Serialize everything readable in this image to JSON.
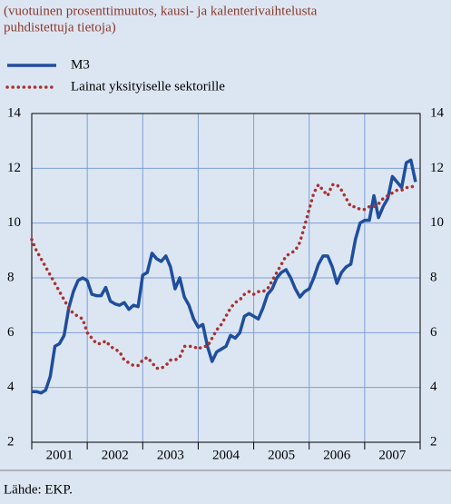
{
  "chart_data": {
    "type": "line",
    "subtitle": [
      "(vuotuinen prosenttimuutos, kausi- ja kalenterivaihtelusta",
      "puhdistettuja tietoja)"
    ],
    "categories": [
      "2001",
      "2002",
      "2003",
      "2004",
      "2005",
      "2006",
      "2007"
    ],
    "xlim": [
      2001,
      2008
    ],
    "ylim": [
      2,
      14
    ],
    "yticks": [
      2,
      4,
      6,
      8,
      10,
      12,
      14
    ],
    "y2lim": [
      2,
      14
    ],
    "y2ticks": [
      2,
      4,
      6,
      8,
      10,
      12,
      14
    ],
    "grid": true,
    "source": "Lähde: EKP.",
    "series": [
      {
        "name": "M3",
        "color": "#1f4e9c",
        "style": "solid",
        "x": [
          2001,
          2001.083,
          2001.167,
          2001.25,
          2001.333,
          2001.417,
          2001.5,
          2001.583,
          2001.667,
          2001.75,
          2001.833,
          2001.917,
          2002,
          2002.083,
          2002.167,
          2002.25,
          2002.333,
          2002.417,
          2002.5,
          2002.583,
          2002.667,
          2002.75,
          2002.833,
          2002.917,
          2003,
          2003.083,
          2003.167,
          2003.25,
          2003.333,
          2003.417,
          2003.5,
          2003.583,
          2003.667,
          2003.75,
          2003.833,
          2003.917,
          2004,
          2004.083,
          2004.167,
          2004.25,
          2004.333,
          2004.417,
          2004.5,
          2004.583,
          2004.667,
          2004.75,
          2004.833,
          2004.917,
          2005,
          2005.083,
          2005.167,
          2005.25,
          2005.333,
          2005.417,
          2005.5,
          2005.583,
          2005.667,
          2005.75,
          2005.833,
          2005.917,
          2006,
          2006.083,
          2006.167,
          2006.25,
          2006.333,
          2006.417,
          2006.5,
          2006.583,
          2006.667,
          2006.75,
          2006.833,
          2006.917,
          2007,
          2007.083,
          2007.167,
          2007.25,
          2007.333,
          2007.417,
          2007.5,
          2007.583,
          2007.667,
          2007.75,
          2007.833,
          2007.917
        ],
        "values": [
          3.85,
          3.85,
          3.8,
          3.9,
          4.4,
          5.5,
          5.6,
          5.9,
          6.9,
          7.5,
          7.9,
          8.0,
          7.9,
          7.4,
          7.35,
          7.35,
          7.65,
          7.15,
          7.05,
          7.0,
          7.1,
          6.85,
          7.0,
          6.95,
          8.1,
          8.2,
          8.9,
          8.7,
          8.6,
          8.8,
          8.4,
          7.6,
          8.0,
          7.3,
          7.0,
          6.5,
          6.2,
          6.3,
          5.5,
          4.95,
          5.3,
          5.4,
          5.5,
          5.9,
          5.8,
          6.0,
          6.6,
          6.7,
          6.6,
          6.5,
          6.9,
          7.4,
          7.6,
          8.0,
          8.2,
          8.3,
          8.0,
          7.6,
          7.3,
          7.5,
          7.6,
          8.0,
          8.5,
          8.8,
          8.8,
          8.4,
          7.8,
          8.2,
          8.4,
          8.5,
          9.4,
          10.0,
          10.1,
          10.1,
          11.0,
          10.2,
          10.6,
          10.9,
          11.7,
          11.5,
          11.3,
          12.2,
          12.3,
          11.5
        ]
      },
      {
        "name": "Lainat yksityiselle sektorille",
        "color": "#a83232",
        "style": "dotted",
        "x": [
          2001,
          2001.083,
          2001.167,
          2001.25,
          2001.333,
          2001.417,
          2001.5,
          2001.583,
          2001.667,
          2001.75,
          2001.833,
          2001.917,
          2002,
          2002.083,
          2002.167,
          2002.25,
          2002.333,
          2002.417,
          2002.5,
          2002.583,
          2002.667,
          2002.75,
          2002.833,
          2002.917,
          2003,
          2003.083,
          2003.167,
          2003.25,
          2003.333,
          2003.417,
          2003.5,
          2003.583,
          2003.667,
          2003.75,
          2003.833,
          2003.917,
          2004,
          2004.083,
          2004.167,
          2004.25,
          2004.333,
          2004.417,
          2004.5,
          2004.583,
          2004.667,
          2004.75,
          2004.833,
          2004.917,
          2005,
          2005.083,
          2005.167,
          2005.25,
          2005.333,
          2005.417,
          2005.5,
          2005.583,
          2005.667,
          2005.75,
          2005.833,
          2005.917,
          2006,
          2006.083,
          2006.167,
          2006.25,
          2006.333,
          2006.417,
          2006.5,
          2006.583,
          2006.667,
          2006.75,
          2006.833,
          2006.917,
          2007,
          2007.083,
          2007.167,
          2007.25,
          2007.333,
          2007.417,
          2007.5,
          2007.583,
          2007.667,
          2007.75,
          2007.833,
          2007.917
        ],
        "values": [
          9.4,
          9.0,
          8.7,
          8.4,
          8.1,
          7.8,
          7.5,
          7.2,
          6.9,
          6.7,
          6.6,
          6.5,
          6.0,
          5.8,
          5.6,
          5.6,
          5.7,
          5.5,
          5.4,
          5.3,
          5.0,
          4.9,
          4.8,
          4.8,
          5.0,
          5.1,
          4.9,
          4.7,
          4.7,
          4.8,
          5.0,
          5.0,
          5.1,
          5.5,
          5.5,
          5.5,
          5.4,
          5.5,
          5.5,
          5.8,
          6.1,
          6.3,
          6.6,
          6.9,
          7.1,
          7.2,
          7.4,
          7.5,
          7.4,
          7.5,
          7.5,
          7.6,
          7.9,
          8.2,
          8.5,
          8.8,
          8.9,
          9.0,
          9.3,
          9.9,
          10.5,
          11.1,
          11.4,
          11.2,
          11.0,
          11.4,
          11.4,
          11.2,
          10.9,
          10.6,
          10.6,
          10.5,
          10.5,
          10.6,
          10.6,
          10.7,
          10.9,
          11.0,
          11.1,
          11.2,
          11.2,
          11.3,
          11.3,
          11.4
        ]
      }
    ]
  }
}
